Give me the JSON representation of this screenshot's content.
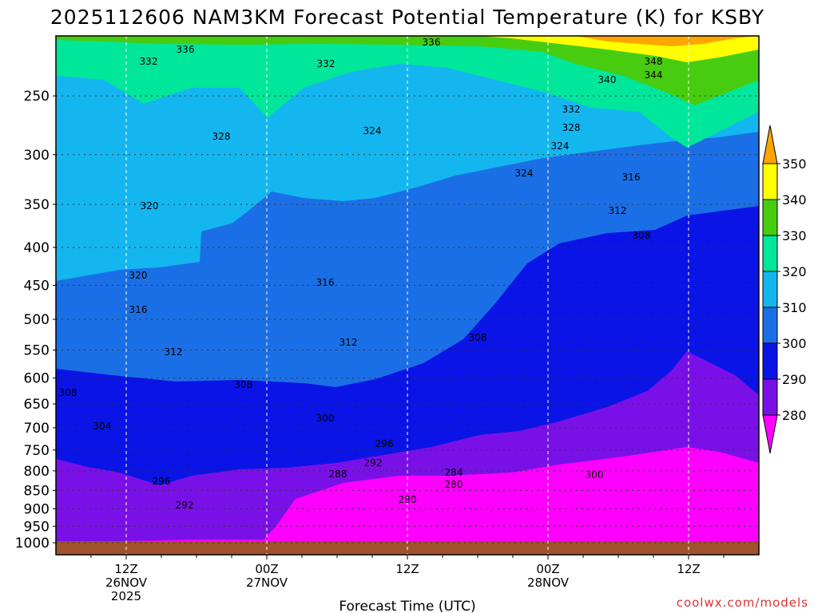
{
  "title": "2025112606 NAM3KM Forecast Potential Temperature (K) for KSBY",
  "credit": "coolwx.com/models",
  "chart_data": {
    "type": "contour",
    "variable": "Potential Temperature (K)",
    "model": "NAM3KM",
    "init": "2025112606",
    "station": "KSBY",
    "xlabel": "Forecast Time (UTC)",
    "ylabel": "",
    "y_axis": {
      "scale": "log",
      "ylim": [
        1000,
        200
      ],
      "ticks": [
        "250",
        "300",
        "350",
        "400",
        "450",
        "500",
        "550",
        "600",
        "650",
        "700",
        "750",
        "800",
        "850",
        "900",
        "950",
        "1000"
      ]
    },
    "x_axis": {
      "ticks": [
        {
          "lines": [
            "12Z",
            "26NOV",
            "2025"
          ]
        },
        {
          "lines": [
            "00Z",
            "27NOV"
          ]
        },
        {
          "lines": [
            "12Z"
          ]
        },
        {
          "lines": [
            "00Z",
            "28NOV"
          ]
        },
        {
          "lines": [
            "12Z"
          ]
        }
      ]
    },
    "grid": true,
    "colorbar": {
      "ticks": [
        "350",
        "340",
        "330",
        "320",
        "310",
        "300",
        "290",
        "280"
      ],
      "bands": [
        {
          "from": 340,
          "to": 350,
          "color": "#ffff00"
        },
        {
          "from": 330,
          "to": 340,
          "color": "#48cc10"
        },
        {
          "from": 320,
          "to": 330,
          "color": "#00e69a"
        },
        {
          "from": 310,
          "to": 320,
          "color": "#14b6f0"
        },
        {
          "from": 300,
          "to": 310,
          "color": "#1a6fe6"
        },
        {
          "from": 290,
          "to": 300,
          "color": "#0a14e6"
        },
        {
          "from": 280,
          "to": 290,
          "color": "#7a10e8"
        }
      ],
      "over_color": "#ffa500",
      "under_color": "#ff00ff"
    },
    "contour_labels": [
      "336",
      "332",
      "336",
      "332",
      "348",
      "344",
      "340",
      "332",
      "328",
      "328",
      "324",
      "324",
      "320",
      "316",
      "324",
      "312",
      "308",
      "320",
      "316",
      "316",
      "312",
      "312",
      "308",
      "308",
      "308",
      "304",
      "300",
      "296",
      "292",
      "288",
      "284",
      "280",
      "280",
      "300",
      "296",
      "292"
    ]
  }
}
